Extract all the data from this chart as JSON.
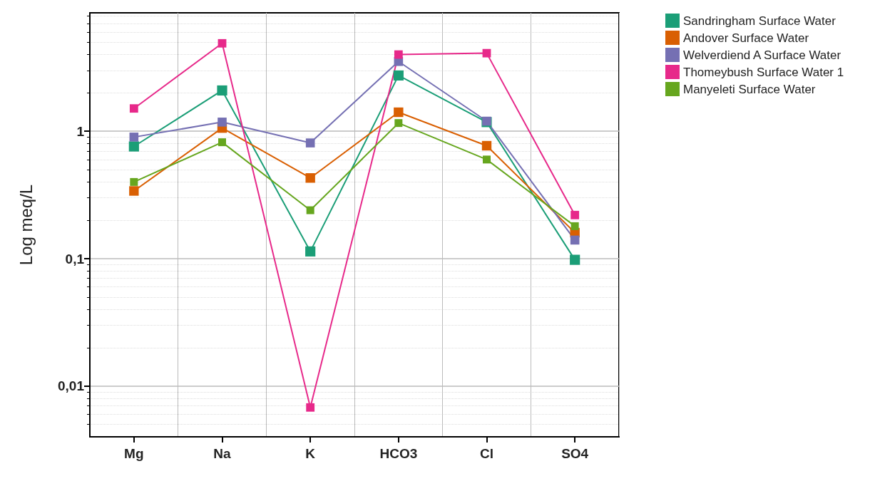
{
  "chart_data": {
    "type": "line",
    "ylabel": "Log meq/L",
    "categories": [
      "Mg",
      "Na",
      "K",
      "HCO3",
      "Cl",
      "SO4"
    ],
    "series": [
      {
        "name": "Sandringham Surface Water",
        "color": "#1b9e77",
        "values": [
          0.76,
          2.09,
          0.114,
          2.74,
          1.18,
          0.098
        ]
      },
      {
        "name": "Andover Surface Water",
        "color": "#d95f02",
        "values": [
          0.34,
          1.06,
          0.43,
          1.41,
          0.77,
          0.16
        ]
      },
      {
        "name": "Welverdiend A Surface Water",
        "color": "#7570b3",
        "values": [
          0.9,
          1.18,
          0.81,
          3.53,
          1.2,
          0.14
        ]
      },
      {
        "name": "Thomeybush Surface Water 1",
        "color": "#e7298a",
        "values": [
          1.51,
          4.9,
          0.0068,
          4.0,
          4.1,
          0.22
        ]
      },
      {
        "name": "Manyeleti Surface Water",
        "color": "#66a61e",
        "values": [
          0.4,
          0.82,
          0.24,
          1.16,
          0.6,
          0.18
        ]
      }
    ],
    "log": true,
    "ylim": [
      0.004,
      8.5
    ],
    "yticks": [
      {
        "value": 0.01,
        "label": "0,01"
      },
      {
        "value": 0.1,
        "label": "0,1"
      },
      {
        "value": 1,
        "label": "1"
      }
    ],
    "grid": true,
    "legend": "top right",
    "marker": "square",
    "line_style": "solid"
  }
}
